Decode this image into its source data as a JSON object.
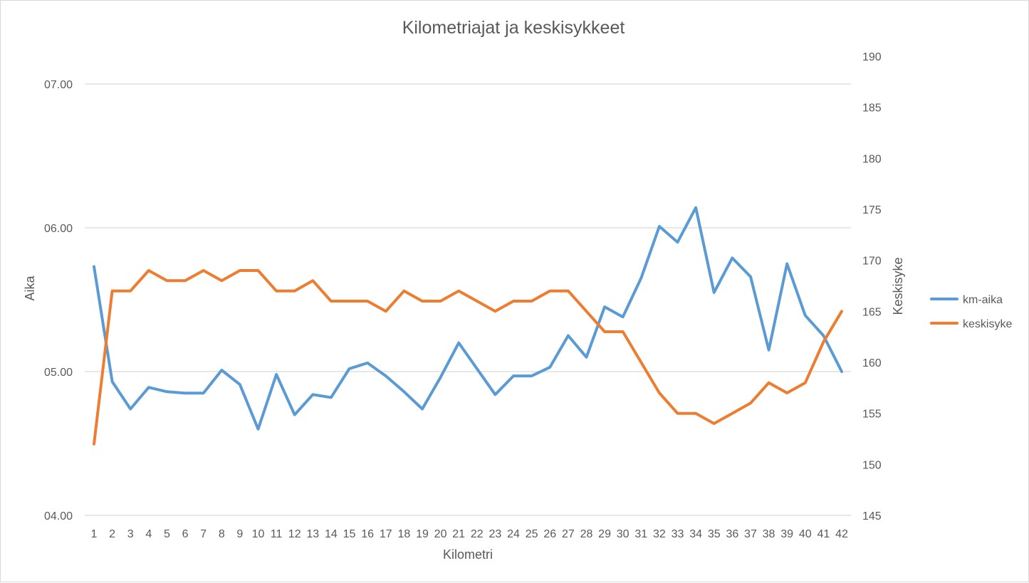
{
  "chart_data": {
    "type": "line",
    "title": "Kilometriajat ja keskisykkeet",
    "xlabel": "Kilometri",
    "ylabel_left": "Aika",
    "ylabel_right": "Keskisyke",
    "categories": [
      "1",
      "2",
      "3",
      "4",
      "5",
      "6",
      "7",
      "8",
      "9",
      "10",
      "11",
      "12",
      "13",
      "14",
      "15",
      "16",
      "17",
      "18",
      "19",
      "20",
      "21",
      "22",
      "23",
      "24",
      "25",
      "26",
      "27",
      "28",
      "29",
      "30",
      "31",
      "32",
      "33",
      "34",
      "35",
      "36",
      "37",
      "38",
      "39",
      "40",
      "41",
      "42"
    ],
    "y_left": {
      "min": 4.0,
      "max": 7.0,
      "ticks": [
        4.0,
        5.0,
        6.0,
        7.0
      ],
      "tick_labels": [
        "04.00",
        "05.00",
        "06.00",
        "07.00"
      ]
    },
    "y_right": {
      "min": 145,
      "max": 190,
      "ticks": [
        145,
        150,
        155,
        160,
        165,
        170,
        175,
        180,
        185,
        190
      ],
      "tick_labels": [
        "145",
        "150",
        "155",
        "160",
        "165",
        "170",
        "175",
        "180",
        "185",
        "190"
      ]
    },
    "grid": true,
    "legend_position": "right",
    "series": [
      {
        "name": "km-aika",
        "axis": "left",
        "color": "#5B9BD5",
        "values": [
          5.73,
          4.93,
          4.74,
          4.89,
          4.86,
          4.85,
          4.85,
          5.01,
          4.91,
          4.6,
          4.98,
          4.7,
          4.84,
          4.82,
          5.02,
          5.06,
          4.97,
          4.86,
          4.74,
          4.96,
          5.2,
          5.02,
          4.84,
          4.97,
          4.97,
          5.03,
          5.25,
          5.1,
          5.45,
          5.38,
          5.65,
          6.01,
          5.9,
          6.14,
          5.55,
          5.79,
          5.66,
          5.15,
          5.75,
          5.39,
          5.25,
          5.0
        ]
      },
      {
        "name": "keskisyke",
        "axis": "right",
        "color": "#ED7D31",
        "values": [
          152,
          167,
          167,
          169,
          168,
          168,
          169,
          168,
          169,
          169,
          167,
          167,
          168,
          166,
          166,
          166,
          165,
          167,
          166,
          166,
          167,
          166,
          165,
          166,
          166,
          167,
          167,
          165,
          163,
          163,
          160,
          157,
          155,
          155,
          154,
          155,
          156,
          158,
          157,
          158,
          162,
          165
        ]
      }
    ]
  }
}
